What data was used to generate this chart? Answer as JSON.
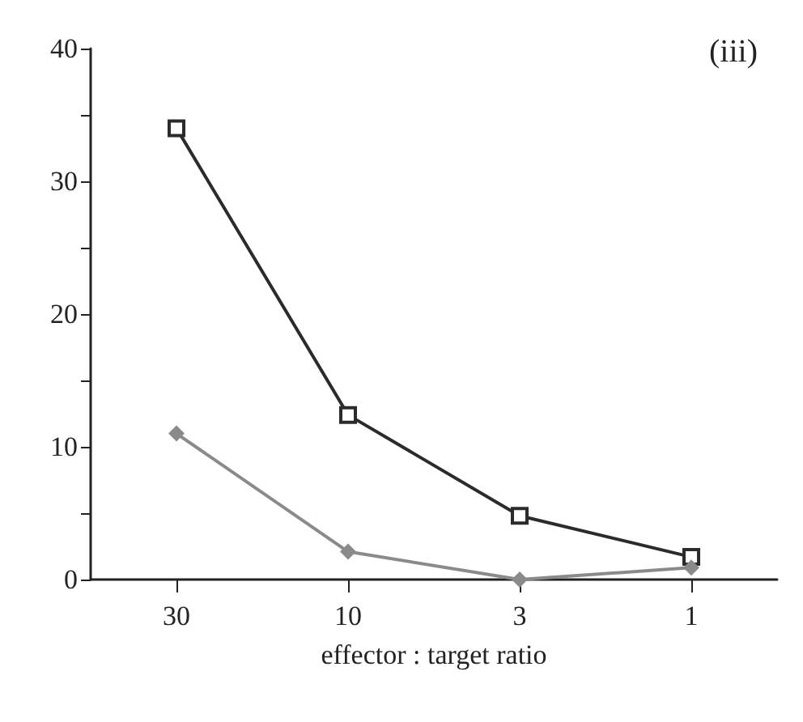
{
  "chart_data": {
    "type": "line",
    "xlabel": "effector : target ratio",
    "annotations": [
      "(iii)"
    ],
    "categories": [
      "30",
      "10",
      "3",
      "1"
    ],
    "series": [
      {
        "color": "#2b2b2b",
        "marker": "square",
        "values": [
          34.0,
          12.4,
          4.8,
          1.7
        ]
      },
      {
        "color": "#8a8a8a",
        "marker": "diamond",
        "values": [
          11.0,
          2.1,
          0,
          0.9
        ]
      }
    ],
    "ylim": [
      0,
      40
    ],
    "yticks": [
      0,
      {
        "value": 5,
        "label": null
      },
      10,
      {
        "value": 15,
        "label": null
      },
      20,
      {
        "value": 25,
        "label": null
      },
      30,
      {
        "value": 35,
        "label": null
      },
      40
    ],
    "grid": false,
    "line_style": "solid"
  }
}
